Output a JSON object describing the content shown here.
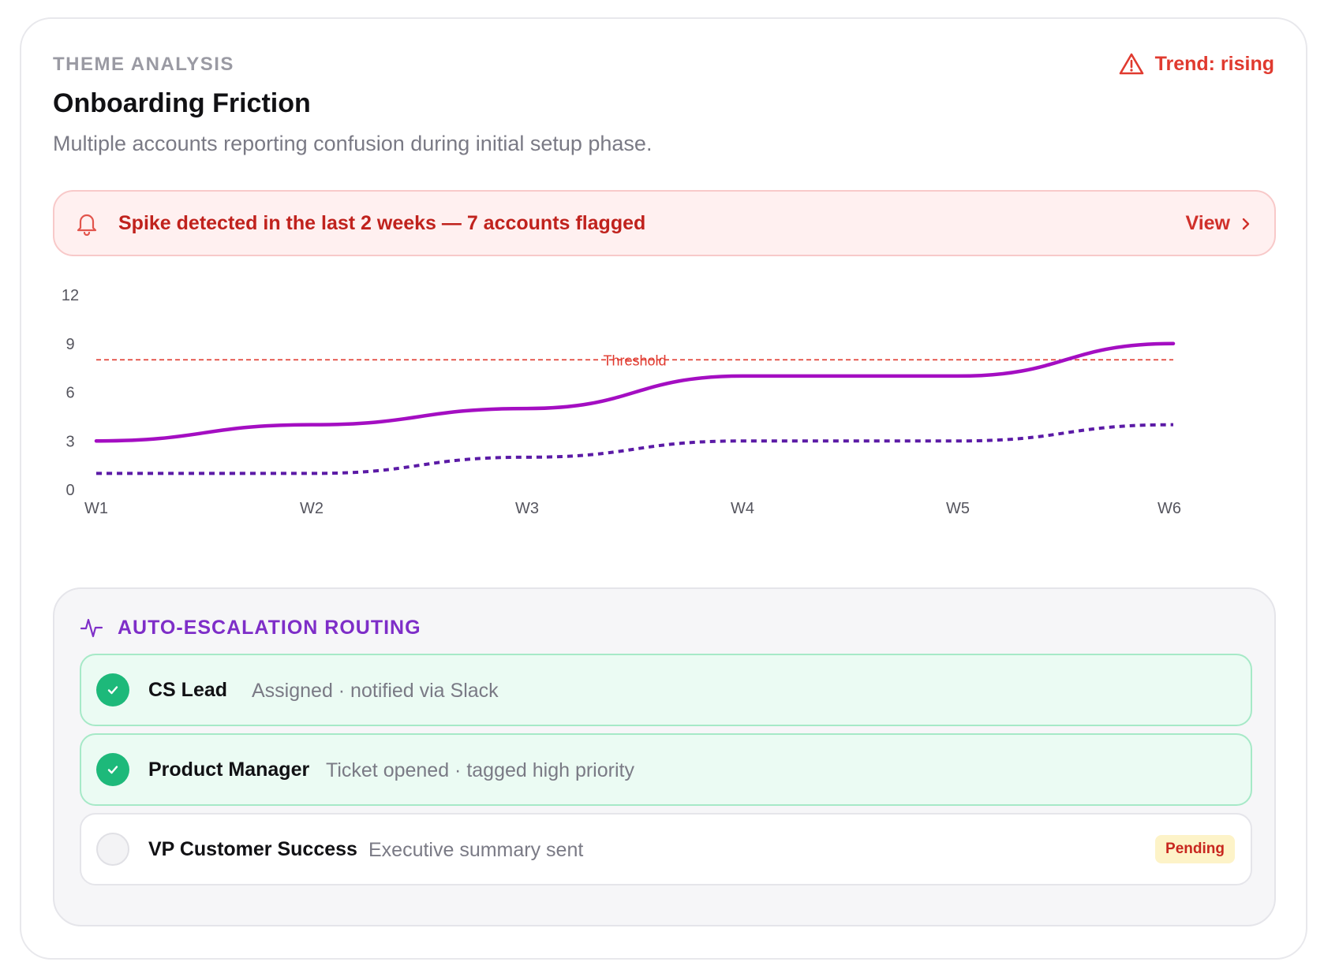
{
  "header": {
    "eyebrow": "THEME ANALYSIS",
    "title": "Onboarding Friction",
    "description": "Multiple accounts reporting confusion during initial setup phase.",
    "trend_label": "Trend: rising"
  },
  "alert": {
    "text": "Spike detected in the last 2 weeks — 7 accounts flagged",
    "action_label": "View"
  },
  "chart_data": {
    "type": "line",
    "categories": [
      "W1",
      "W2",
      "W3",
      "W4",
      "W5",
      "W6"
    ],
    "series": [
      {
        "values": [
          3,
          4,
          5,
          7,
          7,
          9
        ],
        "color": "#a40ec2",
        "style": "solid"
      },
      {
        "values": [
          1,
          1,
          2,
          3,
          3,
          4
        ],
        "color": "#5b1aa6",
        "style": "dashed"
      }
    ],
    "yticks": [
      0,
      3,
      6,
      9,
      12
    ],
    "ylim": [
      0,
      12
    ],
    "threshold": {
      "value": 8,
      "label": "Threshold",
      "color": "#e03a2f"
    },
    "grid": false
  },
  "routing": {
    "title": "AUTO-ESCALATION ROUTING",
    "steps": [
      {
        "name": "CS Lead",
        "detail": "Assigned · notified via Slack",
        "status": "done"
      },
      {
        "name": "Product Manager",
        "detail": "Ticket opened · tagged high priority",
        "status": "done"
      },
      {
        "name": "VP Customer Success",
        "detail": "Executive summary sent",
        "status": "pending",
        "badge": "Pending"
      }
    ]
  },
  "colors": {
    "accent_red": "#e03a2f",
    "accent_purple": "#7e2ec8",
    "success_green": "#1db97a"
  }
}
